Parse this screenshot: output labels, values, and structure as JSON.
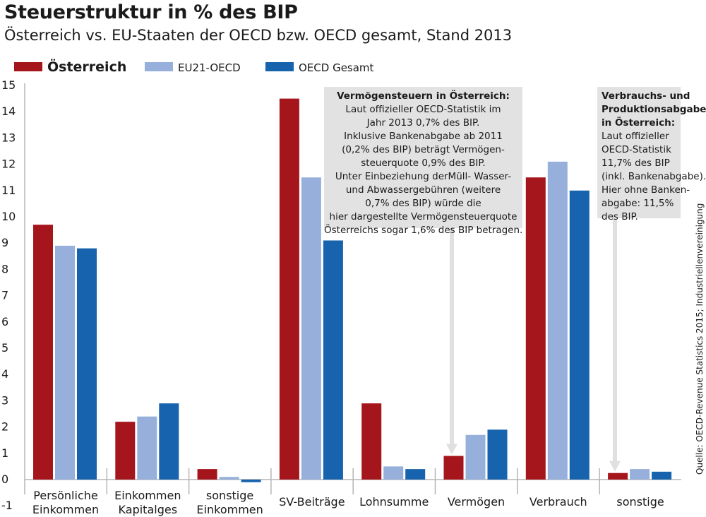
{
  "title": "Steuerstruktur in % des BIP",
  "subtitle": "Österreich vs. EU-Staaten der OECD bzw. OECD gesamt, Stand 2013",
  "source": "Quelle: OECD-Revenue Statistics 2015; Industriellenvereinigung",
  "annotations": {
    "vermoegen": {
      "heading": "Vermögensteuern in Österreich:",
      "lines": [
        "Laut offizieller OECD-Statistik im",
        "Jahr 2013  0,7% des BIP.",
        "Inklusive Bankenabgabe ab 2011",
        "(0,2%  des BIP) beträgt Vermögen-",
        "steuerquote 0,9% des BIP.",
        "Unter Einbeziehung derMüll- Wasser-",
        "und Abwassergebühren (weitere",
        "0,7% des BIP) würde die",
        "hier dargestellte Vermögensteuerquote",
        "Österreichs sogar  1,6% des BIP betragen."
      ]
    },
    "verbrauch": {
      "heading": [
        "Verbrauchs- und",
        "Produktionsabgaben",
        "in Österreich:"
      ],
      "lines": [
        "Laut offizieller",
        "OECD-Statistik",
        "11,7% des BIP",
        "(inkl. Bankenabgabe).",
        "Hier ohne Banken-",
        "abgabe: 11,5%",
        "des BIP."
      ]
    }
  },
  "chart_data": {
    "type": "bar",
    "title": "Steuerstruktur in % des BIP",
    "subtitle": "Österreich vs. EU-Staaten der OECD bzw. OECD gesamt, Stand 2013",
    "categories": [
      [
        "Persönliche",
        "Einkommen"
      ],
      [
        "Einkommen",
        "Kapitalges"
      ],
      [
        "sonstige",
        "Einkommen"
      ],
      [
        "SV-Beiträge"
      ],
      [
        "Lohnsumme"
      ],
      [
        "Vermögen"
      ],
      [
        "Verbrauch"
      ],
      [
        "sonstige"
      ]
    ],
    "series": [
      {
        "name": "Österreich",
        "color": "#a5161c",
        "values": [
          9.7,
          2.2,
          0.4,
          14.5,
          2.9,
          0.9,
          11.5,
          0.25
        ]
      },
      {
        "name": "EU21-OECD",
        "color": "#97b0db",
        "values": [
          8.9,
          2.4,
          0.1,
          11.5,
          0.5,
          1.7,
          12.1,
          0.4
        ]
      },
      {
        "name": "OECD Gesamt",
        "color": "#1763ad",
        "values": [
          8.8,
          2.9,
          -0.1,
          9.1,
          0.4,
          1.9,
          11.0,
          0.3
        ]
      }
    ],
    "yticks": [
      15,
      14,
      13,
      12,
      11,
      10,
      9,
      8,
      7,
      6,
      5,
      4,
      3,
      2,
      1,
      0,
      -1
    ],
    "ylim": [
      -1,
      15
    ],
    "legend_position": "top-left",
    "grid": false
  }
}
